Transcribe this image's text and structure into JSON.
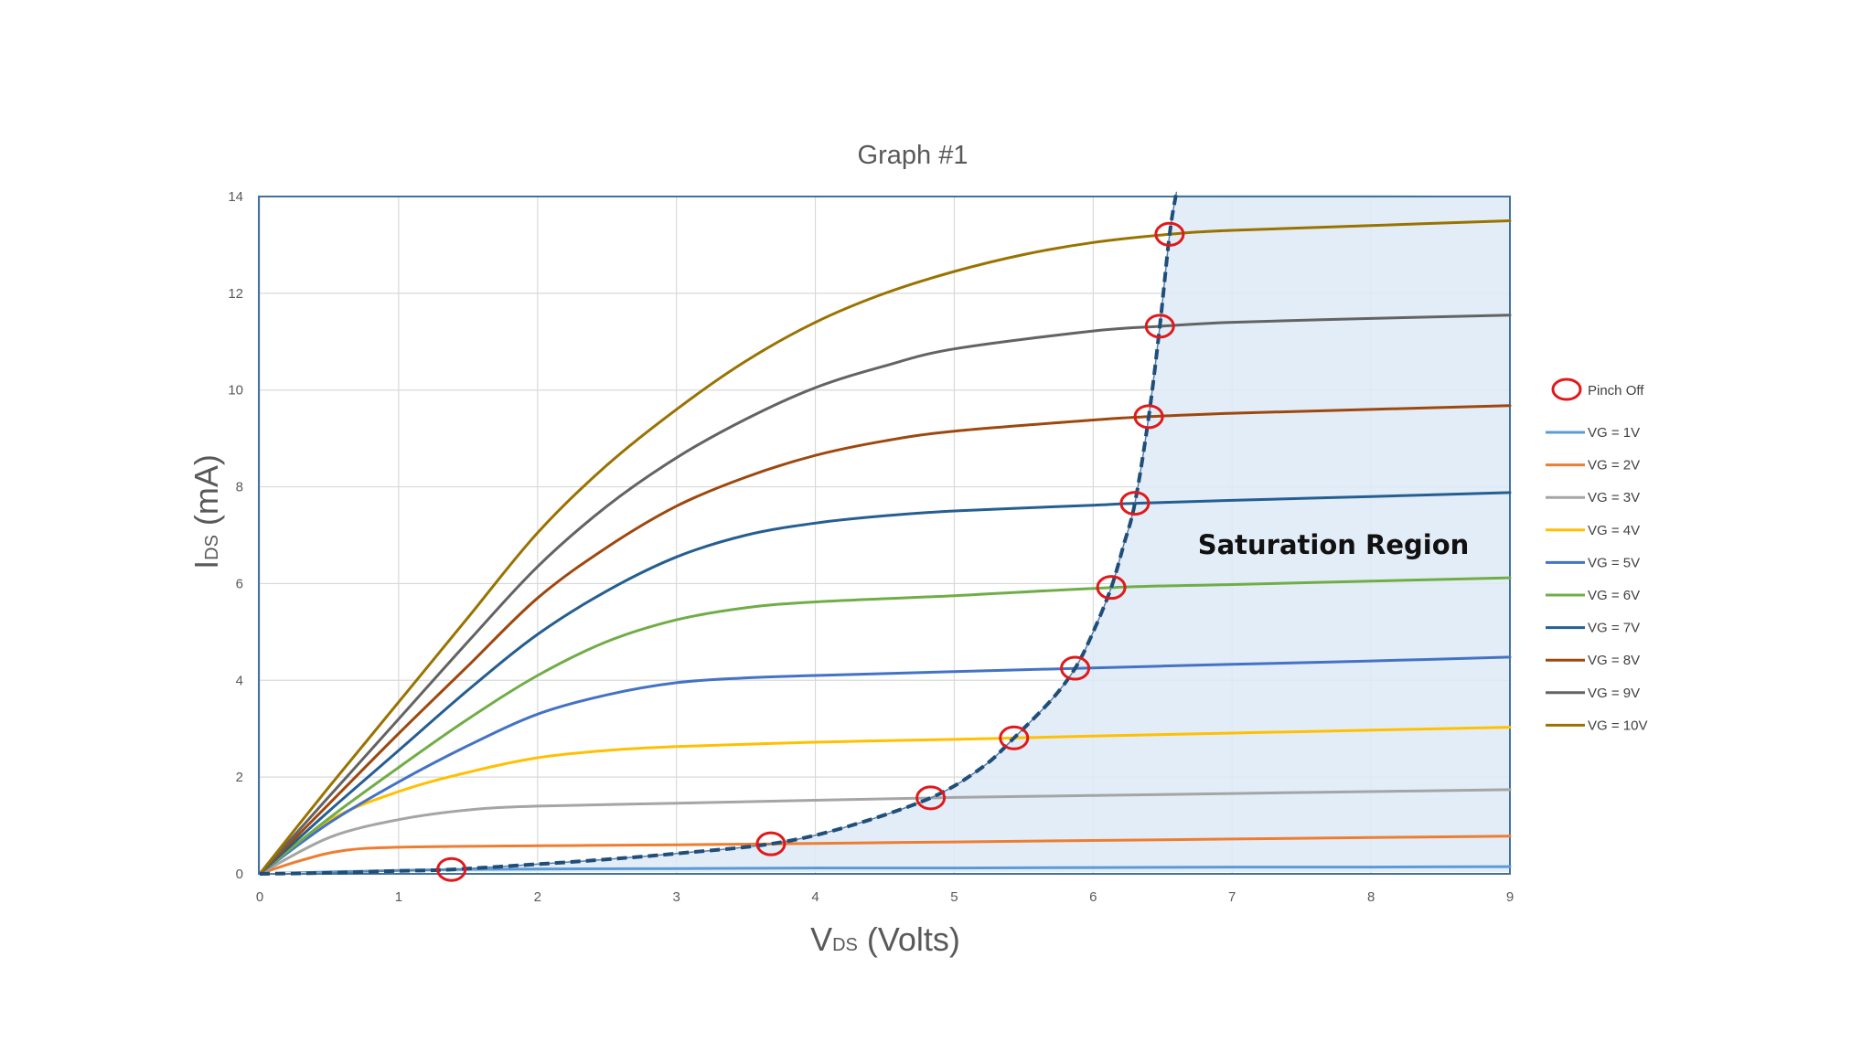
{
  "chart_data": {
    "type": "line",
    "title": "Graph #1",
    "xlabel": {
      "main": "V",
      "sub": "DS",
      "rest": " (Volts)"
    },
    "ylabel": {
      "main": "I",
      "sub": "DS",
      "rest": " (mA)"
    },
    "xlim": [
      0,
      9
    ],
    "ylim": [
      0,
      14
    ],
    "xticks": [
      0,
      1,
      2,
      3,
      4,
      5,
      6,
      7,
      8,
      9
    ],
    "yticks": [
      0,
      2,
      4,
      6,
      8,
      10,
      12,
      14
    ],
    "grid": true,
    "legend_position": "right",
    "annotation": "Saturation Region",
    "colors": {
      "grid": "#d9d9d9",
      "plot_border": "#41719c",
      "saturation_fill": "#deeaf6",
      "pinch_marker": "#e0191b",
      "pinch_curve": "#1f4e79"
    },
    "pinch_off_legend": "Pinch Off",
    "series": [
      {
        "name": "VG = 1V",
        "color": "#5b9bd5",
        "x": [
          0,
          0.5,
          1,
          1.4,
          2,
          3,
          4,
          5,
          6,
          7,
          8,
          9
        ],
        "y": [
          0,
          0.04,
          0.07,
          0.09,
          0.1,
          0.11,
          0.12,
          0.12,
          0.13,
          0.14,
          0.14,
          0.15
        ]
      },
      {
        "name": "VG = 2V",
        "color": "#ed7d31",
        "x": [
          0,
          0.3,
          0.6,
          1,
          2,
          3,
          3.7,
          4,
          5,
          6,
          7,
          8,
          9
        ],
        "y": [
          0,
          0.28,
          0.48,
          0.55,
          0.58,
          0.6,
          0.62,
          0.63,
          0.66,
          0.69,
          0.72,
          0.75,
          0.78
        ]
      },
      {
        "name": "VG = 3V",
        "color": "#a5a5a5",
        "x": [
          0,
          0.5,
          1,
          1.5,
          2,
          3,
          4,
          4.85,
          5,
          6,
          7,
          8,
          9
        ],
        "y": [
          0,
          0.75,
          1.12,
          1.32,
          1.4,
          1.46,
          1.52,
          1.57,
          1.58,
          1.62,
          1.66,
          1.7,
          1.74
        ]
      },
      {
        "name": "VG = 4V",
        "color": "#ffc000",
        "x": [
          0,
          0.5,
          1,
          1.5,
          2,
          2.5,
          3,
          4,
          5,
          5.45,
          6,
          7,
          8,
          9
        ],
        "y": [
          0,
          1.1,
          1.7,
          2.1,
          2.4,
          2.55,
          2.63,
          2.72,
          2.78,
          2.81,
          2.85,
          2.91,
          2.97,
          3.03
        ]
      },
      {
        "name": "VG = 5V",
        "color": "#4472c4",
        "x": [
          0,
          0.5,
          1,
          1.5,
          2,
          2.5,
          3,
          3.5,
          4,
          5,
          5.9,
          7,
          8,
          9
        ],
        "y": [
          0,
          1.05,
          1.9,
          2.65,
          3.3,
          3.7,
          3.95,
          4.05,
          4.1,
          4.18,
          4.25,
          4.33,
          4.4,
          4.48
        ]
      },
      {
        "name": "VG = 6V",
        "color": "#70ad47",
        "x": [
          0,
          0.5,
          1,
          1.5,
          2,
          2.5,
          3,
          3.5,
          4,
          5,
          6.15,
          7,
          8,
          9
        ],
        "y": [
          0,
          1.15,
          2.2,
          3.2,
          4.1,
          4.8,
          5.25,
          5.5,
          5.62,
          5.75,
          5.92,
          5.98,
          6.05,
          6.12
        ]
      },
      {
        "name": "VG = 7V",
        "color": "#255e91",
        "x": [
          0,
          0.5,
          1,
          1.5,
          2,
          2.5,
          3,
          3.5,
          4,
          4.5,
          5,
          6,
          6.3,
          7,
          8,
          9
        ],
        "y": [
          0,
          1.3,
          2.55,
          3.8,
          4.95,
          5.85,
          6.55,
          7.0,
          7.25,
          7.4,
          7.5,
          7.62,
          7.66,
          7.72,
          7.8,
          7.88
        ]
      },
      {
        "name": "VG = 8V",
        "color": "#9e480e",
        "x": [
          0,
          0.5,
          1,
          1.5,
          2,
          2.5,
          3,
          3.5,
          4,
          4.5,
          5,
          6,
          6.4,
          7,
          8,
          9
        ],
        "y": [
          0,
          1.45,
          2.9,
          4.3,
          5.7,
          6.75,
          7.6,
          8.2,
          8.65,
          8.95,
          9.15,
          9.38,
          9.45,
          9.52,
          9.6,
          9.68
        ]
      },
      {
        "name": "VG = 9V",
        "color": "#636363",
        "x": [
          0,
          0.5,
          1,
          1.5,
          2,
          2.5,
          3,
          3.5,
          4,
          4.5,
          5,
          6,
          6.5,
          7,
          8,
          9
        ],
        "y": [
          0,
          1.6,
          3.2,
          4.8,
          6.35,
          7.6,
          8.6,
          9.4,
          10.05,
          10.5,
          10.85,
          11.22,
          11.32,
          11.4,
          11.48,
          11.55
        ]
      },
      {
        "name": "VG = 10V",
        "color": "#997300",
        "x": [
          0,
          0.5,
          1,
          1.5,
          2,
          2.5,
          3,
          3.5,
          4,
          4.5,
          5,
          5.5,
          6,
          6.55,
          7,
          8,
          9
        ],
        "y": [
          0,
          1.8,
          3.55,
          5.3,
          7.05,
          8.45,
          9.6,
          10.6,
          11.4,
          12.0,
          12.45,
          12.8,
          13.05,
          13.22,
          13.3,
          13.4,
          13.5
        ]
      }
    ],
    "pinch_off_points": [
      {
        "x": 1.38,
        "y": 0.09
      },
      {
        "x": 3.68,
        "y": 0.62
      },
      {
        "x": 4.83,
        "y": 1.57
      },
      {
        "x": 5.43,
        "y": 2.81
      },
      {
        "x": 5.87,
        "y": 4.25
      },
      {
        "x": 6.13,
        "y": 5.92
      },
      {
        "x": 6.3,
        "y": 7.66
      },
      {
        "x": 6.4,
        "y": 9.45
      },
      {
        "x": 6.48,
        "y": 11.32
      },
      {
        "x": 6.55,
        "y": 13.22
      }
    ],
    "pinch_off_curve": {
      "x": [
        0,
        0.5,
        1,
        1.38,
        2,
        2.5,
        3,
        3.68,
        4.2,
        4.83,
        5.2,
        5.43,
        5.7,
        5.87,
        6.0,
        6.13,
        6.22,
        6.3,
        6.4,
        6.48,
        6.55,
        6.6
      ],
      "y": [
        0,
        0.02,
        0.06,
        0.09,
        0.2,
        0.3,
        0.42,
        0.62,
        0.95,
        1.57,
        2.2,
        2.81,
        3.6,
        4.25,
        5.0,
        5.92,
        6.8,
        7.66,
        9.45,
        11.32,
        13.22,
        14.1
      ]
    }
  }
}
